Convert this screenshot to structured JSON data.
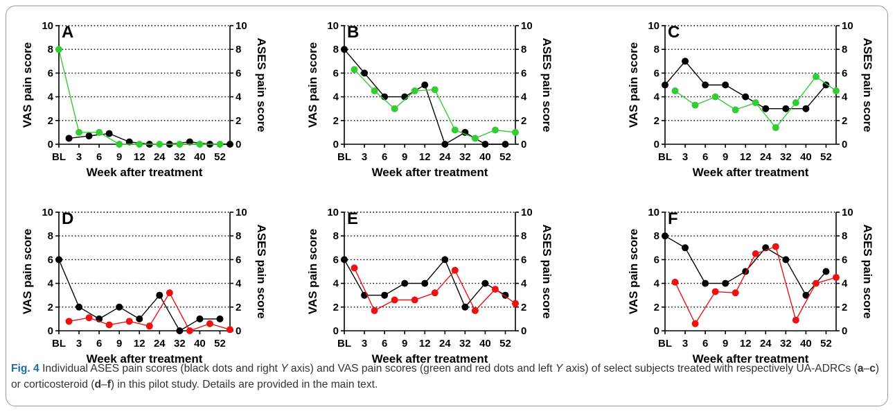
{
  "caption": {
    "label": "Fig. 4",
    "part1": " Individual ASES pain scores (black dots and right ",
    "y1": "Y",
    "part2": " axis) and VAS pain scores (green and red dots and left ",
    "y2": "Y",
    "part3": " axis) of select subjects treated with respectively UA-ADRCs (",
    "ref1": "a",
    "dash1": "–",
    "ref2": "c",
    "part4": ") or corticosteroid (",
    "ref3": "d",
    "dash2": "–",
    "ref4": "f",
    "part5": ") in this pilot study. Details are provided in the main text."
  },
  "colors": {
    "ases": "#000000",
    "vas_green": "#33cc33",
    "vas_red": "#ee1111",
    "grid": "#000000"
  },
  "chart_data": [
    {
      "type": "line",
      "panel_label": "A",
      "categories": [
        "BL",
        "3",
        "6",
        "9",
        "12",
        "24",
        "32",
        "40",
        "52"
      ],
      "xlabel": "Week after treatment",
      "ylabel_left": "VAS pain score",
      "ylabel_right": "ASES pain score",
      "ylim": [
        0,
        10
      ],
      "yticks": [
        0,
        2,
        4,
        6,
        8,
        10
      ],
      "grid": "dotted horizontal",
      "series": [
        {
          "color": "ases",
          "x": [
            0.5,
            1.5,
            2.5,
            3.5,
            4.5,
            5.5,
            6.5,
            7.5,
            8.5
          ],
          "values": [
            0.5,
            0.7,
            0.9,
            0.2,
            0,
            0,
            0.2,
            0,
            0
          ]
        },
        {
          "color": "vas_green",
          "x": [
            0,
            1,
            2,
            3,
            4,
            5,
            6,
            7,
            8
          ],
          "values": [
            8,
            1,
            1,
            0,
            0,
            0,
            0,
            0,
            0
          ]
        }
      ]
    },
    {
      "type": "line",
      "panel_label": "B",
      "categories": [
        "BL",
        "3",
        "6",
        "9",
        "12",
        "24",
        "32",
        "40",
        "52"
      ],
      "xlabel": "Week after treatment",
      "ylabel_left": "VAS pain score",
      "ylabel_right": "ASES pain score",
      "ylim": [
        0,
        10
      ],
      "yticks": [
        0,
        2,
        4,
        6,
        8,
        10
      ],
      "grid": "dotted horizontal",
      "series": [
        {
          "color": "ases",
          "x": [
            0,
            1,
            2,
            3,
            4,
            5,
            6,
            7,
            8
          ],
          "values": [
            8,
            6,
            4,
            4,
            5,
            0,
            1,
            0,
            0
          ]
        },
        {
          "color": "vas_green",
          "x": [
            0.5,
            1.5,
            2.5,
            3.5,
            4.5,
            5.5,
            6.5,
            7.5,
            8.5
          ],
          "values": [
            6.3,
            4.5,
            3,
            4.5,
            4.6,
            1.2,
            0.5,
            1.2,
            1
          ]
        }
      ]
    },
    {
      "type": "line",
      "panel_label": "C",
      "categories": [
        "BL",
        "3",
        "6",
        "9",
        "12",
        "24",
        "32",
        "40",
        "52"
      ],
      "xlabel": "Week after treatment",
      "ylabel_left": "VAS pain score",
      "ylabel_right": "ASES pain score",
      "ylim": [
        0,
        10
      ],
      "yticks": [
        0,
        2,
        4,
        6,
        8,
        10
      ],
      "grid": "dotted horizontal",
      "series": [
        {
          "color": "ases",
          "x": [
            0,
            1,
            2,
            3,
            4,
            5,
            6,
            7,
            8
          ],
          "values": [
            5,
            7,
            5,
            5,
            4,
            3,
            3,
            3,
            5
          ]
        },
        {
          "color": "vas_green",
          "x": [
            0.5,
            1.5,
            2.5,
            3.5,
            4.5,
            5.5,
            6.5,
            7.5,
            8.5
          ],
          "values": [
            4.5,
            3.3,
            4,
            2.9,
            3.5,
            1.4,
            3.5,
            5.7,
            4.5
          ]
        }
      ]
    },
    {
      "type": "line",
      "panel_label": "D",
      "categories": [
        "BL",
        "3",
        "6",
        "9",
        "12",
        "24",
        "32",
        "40",
        "52"
      ],
      "xlabel": "Week after treatment",
      "ylabel_left": "VAS pain score",
      "ylabel_right": "ASES pain score",
      "ylim": [
        0,
        10
      ],
      "yticks": [
        0,
        2,
        4,
        6,
        8,
        10
      ],
      "grid": "dotted horizontal",
      "series": [
        {
          "color": "ases",
          "x": [
            0,
            1,
            2,
            3,
            4,
            5,
            6,
            7,
            8
          ],
          "values": [
            6,
            2,
            1,
            2,
            1,
            3,
            0,
            1,
            1
          ]
        },
        {
          "color": "vas_red",
          "x": [
            0.5,
            1.5,
            2.5,
            3.5,
            4.5,
            5.5,
            6.5,
            7.5,
            8.5
          ],
          "values": [
            0.8,
            1.1,
            0.5,
            0.8,
            0.4,
            3.2,
            0,
            0.6,
            0.1
          ]
        }
      ]
    },
    {
      "type": "line",
      "panel_label": "E",
      "categories": [
        "BL",
        "3",
        "6",
        "9",
        "12",
        "24",
        "32",
        "40",
        "52"
      ],
      "xlabel": "Week after treatment",
      "ylabel_left": "VAS pain score",
      "ylabel_right": "ASES pain score",
      "ylim": [
        0,
        10
      ],
      "yticks": [
        0,
        2,
        4,
        6,
        8,
        10
      ],
      "grid": "dotted horizontal",
      "series": [
        {
          "color": "ases",
          "x": [
            0,
            1,
            2,
            3,
            4,
            5,
            6,
            7,
            8
          ],
          "values": [
            6,
            3,
            3,
            4,
            4,
            6,
            2,
            4,
            3
          ]
        },
        {
          "color": "vas_red",
          "x": [
            0.5,
            1.5,
            2.5,
            3.5,
            4.5,
            5.5,
            6.5,
            7.5,
            8.5
          ],
          "values": [
            5.3,
            1.7,
            2.6,
            2.6,
            3.2,
            5.1,
            1.7,
            3.5,
            2.3
          ]
        }
      ]
    },
    {
      "type": "line",
      "panel_label": "F",
      "categories": [
        "BL",
        "3",
        "6",
        "9",
        "12",
        "24",
        "32",
        "40",
        "52"
      ],
      "xlabel": "Week after treatment",
      "ylabel_left": "VAS pain score",
      "ylabel_right": "ASES pain score",
      "ylim": [
        0,
        10
      ],
      "yticks": [
        0,
        2,
        4,
        6,
        8,
        10
      ],
      "grid": "dotted horizontal",
      "series": [
        {
          "color": "ases",
          "x": [
            0,
            1,
            2,
            3,
            4,
            5,
            6,
            7,
            8
          ],
          "values": [
            8,
            7,
            4,
            4,
            5,
            7,
            6,
            3,
            5
          ]
        },
        {
          "color": "vas_red",
          "x": [
            0.5,
            1.5,
            2.5,
            3.5,
            4.5,
            5.5,
            6.5,
            7.5,
            8.5
          ],
          "values": [
            4.1,
            0.6,
            3.3,
            3.2,
            6.5,
            7.1,
            0.9,
            4,
            4.5
          ]
        }
      ]
    }
  ]
}
